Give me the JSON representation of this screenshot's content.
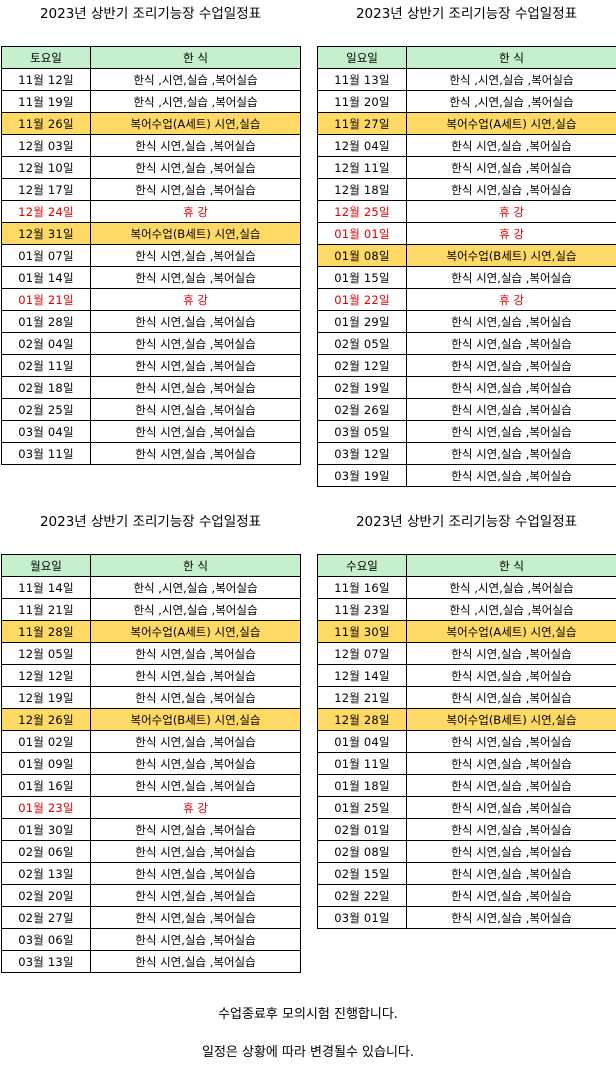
{
  "schedules": [
    {
      "title": "2023년 상반기 조리기능장 수업일정표",
      "header": [
        "토요일",
        "한 식"
      ],
      "rows": [
        {
          "date": "11월 12일",
          "desc": "한식 ,시연,실습 ,복어실습",
          "type": "normal"
        },
        {
          "date": "11월 19일",
          "desc": "한식 ,시연,실습 ,복어실습",
          "type": "normal"
        },
        {
          "date": "11월 26일",
          "desc": "복어수업(A세트)  시연,실습",
          "type": "highlight"
        },
        {
          "date": "12월 03일",
          "desc": "한식 시연,실습 ,복어실습",
          "type": "normal"
        },
        {
          "date": "12월 10일",
          "desc": "한식 시연,실습 ,복어실습",
          "type": "normal"
        },
        {
          "date": "12월 17일",
          "desc": "한식 시연,실습 ,복어실습",
          "type": "normal"
        },
        {
          "date": "12월 24일",
          "desc": "휴 강",
          "type": "off"
        },
        {
          "date": "12월 31일",
          "desc": "복어수업(B세트)  시연,실습",
          "type": "highlight"
        },
        {
          "date": "01월 07일",
          "desc": "한식 시연,실습 ,복어실습",
          "type": "normal"
        },
        {
          "date": "01월 14일",
          "desc": "한식 시연,실습 ,복어실습",
          "type": "normal"
        },
        {
          "date": "01월 21일",
          "desc": "휴 강",
          "type": "off"
        },
        {
          "date": "01월 28일",
          "desc": "한식 시연,실습 ,복어실습",
          "type": "normal"
        },
        {
          "date": "02월 04일",
          "desc": "한식 시연,실습 ,복어실습",
          "type": "normal"
        },
        {
          "date": "02월 11일",
          "desc": "한식 시연,실습 ,복어실습",
          "type": "normal"
        },
        {
          "date": "02월 18일",
          "desc": "한식 시연,실습 ,복어실습",
          "type": "normal"
        },
        {
          "date": "02월 25일",
          "desc": "한식 시연,실습 ,복어실습",
          "type": "normal"
        },
        {
          "date": "03월 04일",
          "desc": "한식 시연,실습 ,복어실습",
          "type": "normal"
        },
        {
          "date": "03월 11일",
          "desc": "한식 시연,실습 ,복어실습",
          "type": "normal"
        }
      ]
    },
    {
      "title": "2023년 상반기 조리기능장 수업일정표",
      "header": [
        "일요일",
        "한 식"
      ],
      "rows": [
        {
          "date": "11월 13일",
          "desc": "한식 ,시연,실습 ,복어실습",
          "type": "normal"
        },
        {
          "date": "11월 20일",
          "desc": "한식 ,시연,실습 ,복어실습",
          "type": "normal"
        },
        {
          "date": "11월 27일",
          "desc": "복어수업(A세트)  시연,실습",
          "type": "highlight"
        },
        {
          "date": "12월 04일",
          "desc": "한식 시연,실습 ,복어실습",
          "type": "normal"
        },
        {
          "date": "12월 11일",
          "desc": "한식 시연,실습 ,복어실습",
          "type": "normal"
        },
        {
          "date": "12월 18일",
          "desc": "한식 시연,실습 ,복어실습",
          "type": "normal"
        },
        {
          "date": "12월 25일",
          "desc": "휴 강",
          "type": "off"
        },
        {
          "date": "01월 01일",
          "desc": "휴 강",
          "type": "off"
        },
        {
          "date": "01월 08일",
          "desc": "복어수업(B세트)  시연,실습",
          "type": "highlight"
        },
        {
          "date": "01월 15일",
          "desc": "한식 시연,실습 ,복어실습",
          "type": "normal"
        },
        {
          "date": "01월 22일",
          "desc": "휴 강",
          "type": "off"
        },
        {
          "date": "01월 29일",
          "desc": "한식 시연,실습 ,복어실습",
          "type": "normal"
        },
        {
          "date": "02월 05일",
          "desc": "한식 시연,실습 ,복어실습",
          "type": "normal"
        },
        {
          "date": "02월 12일",
          "desc": "한식 시연,실습 ,복어실습",
          "type": "normal"
        },
        {
          "date": "02월 19일",
          "desc": "한식 시연,실습 ,복어실습",
          "type": "normal"
        },
        {
          "date": "02월 26일",
          "desc": "한식 시연,실습 ,복어실습",
          "type": "normal"
        },
        {
          "date": "03월 05일",
          "desc": "한식 시연,실습 ,복어실습",
          "type": "normal"
        },
        {
          "date": "03월 12일",
          "desc": "한식 시연,실습 ,복어실습",
          "type": "normal"
        },
        {
          "date": "03월 19일",
          "desc": "한식 시연,실습 ,복어실습",
          "type": "normal"
        }
      ]
    },
    {
      "title": "2023년 상반기 조리기능장 수업일정표",
      "header": [
        "월요일",
        "한 식"
      ],
      "rows": [
        {
          "date": "11월 14일",
          "desc": "한식 ,시연,실습 ,복어실습",
          "type": "normal"
        },
        {
          "date": "11월 21일",
          "desc": "한식 ,시연,실습 ,복어실습",
          "type": "normal"
        },
        {
          "date": "11월 28일",
          "desc": "복어수업(A세트)  시연,실습",
          "type": "highlight"
        },
        {
          "date": "12월 05일",
          "desc": "한식 시연,실습 ,복어실습",
          "type": "normal"
        },
        {
          "date": "12월 12일",
          "desc": "한식 시연,실습 ,복어실습",
          "type": "normal"
        },
        {
          "date": "12월 19일",
          "desc": "한식 시연,실습 ,복어실습",
          "type": "normal"
        },
        {
          "date": "12월 26일",
          "desc": "복어수업(B세트)  시연,실습",
          "type": "highlight"
        },
        {
          "date": "01월 02일",
          "desc": "한식 시연,실습 ,복어실습",
          "type": "normal"
        },
        {
          "date": "01월 09일",
          "desc": "한식 시연,실습 ,복어실습",
          "type": "normal"
        },
        {
          "date": "01월 16일",
          "desc": "한식 시연,실습 ,복어실습",
          "type": "normal"
        },
        {
          "date": "01월 23일",
          "desc": "휴 강",
          "type": "off"
        },
        {
          "date": "01월 30일",
          "desc": "한식 시연,실습 ,복어실습",
          "type": "normal"
        },
        {
          "date": "02월 06일",
          "desc": "한식 시연,실습 ,복어실습",
          "type": "normal"
        },
        {
          "date": "02월 13일",
          "desc": "한식 시연,실습 ,복어실습",
          "type": "normal"
        },
        {
          "date": "02월 20일",
          "desc": "한식 시연,실습 ,복어실습",
          "type": "normal"
        },
        {
          "date": "02월 27일",
          "desc": "한식 시연,실습 ,복어실습",
          "type": "normal"
        },
        {
          "date": "03월 06일",
          "desc": "한식 시연,실습 ,복어실습",
          "type": "normal"
        },
        {
          "date": "03월 13일",
          "desc": "한식 시연,실습 ,복어실습",
          "type": "normal"
        }
      ]
    },
    {
      "title": "2023년 상반기 조리기능장 수업일정표",
      "header": [
        "수요일",
        "한 식"
      ],
      "rows": [
        {
          "date": "11월 16일",
          "desc": "한식 ,시연,실습 ,복어실습",
          "type": "normal"
        },
        {
          "date": "11월 23일",
          "desc": "한식 ,시연,실습 ,복어실습",
          "type": "normal"
        },
        {
          "date": "11월 30일",
          "desc": "복어수업(A세트)  시연,실습",
          "type": "highlight"
        },
        {
          "date": "12월 07일",
          "desc": "한식 시연,실습 ,복어실습",
          "type": "normal"
        },
        {
          "date": "12월 14일",
          "desc": "한식 시연,실습 ,복어실습",
          "type": "normal"
        },
        {
          "date": "12월 21일",
          "desc": "한식 시연,실습 ,복어실습",
          "type": "normal"
        },
        {
          "date": "12월 28일",
          "desc": "복어수업(B세트)  시연,실습",
          "type": "highlight"
        },
        {
          "date": "01월 04일",
          "desc": "한식 시연,실습 ,복어실습",
          "type": "normal"
        },
        {
          "date": "01월 11일",
          "desc": "한식 시연,실습 ,복어실습",
          "type": "normal"
        },
        {
          "date": "01월 18일",
          "desc": "한식 시연,실습 ,복어실습",
          "type": "normal"
        },
        {
          "date": "01월 25일",
          "desc": "한식 시연,실습 ,복어실습",
          "type": "normal"
        },
        {
          "date": "02월 01일",
          "desc": "한식 시연,실습 ,복어실습",
          "type": "normal"
        },
        {
          "date": "02월 08일",
          "desc": "한식 시연,실습 ,복어실습",
          "type": "normal"
        },
        {
          "date": "02월 15일",
          "desc": "한식 시연,실습 ,복어실습",
          "type": "normal"
        },
        {
          "date": "02월 22일",
          "desc": "한식 시연,실습 ,복어실습",
          "type": "normal"
        },
        {
          "date": "03월 01일",
          "desc": "한식 시연,실습 ,복어실습",
          "type": "normal"
        }
      ]
    }
  ],
  "notes": [
    "수업종료후  모의시험 진행합니다.",
    "일정은 상황에 따라 변경될수 있습니다."
  ],
  "colors": {
    "header_bg": "#c6efce",
    "highlight_bg": "#ffd966",
    "off_text": "#e00000"
  }
}
